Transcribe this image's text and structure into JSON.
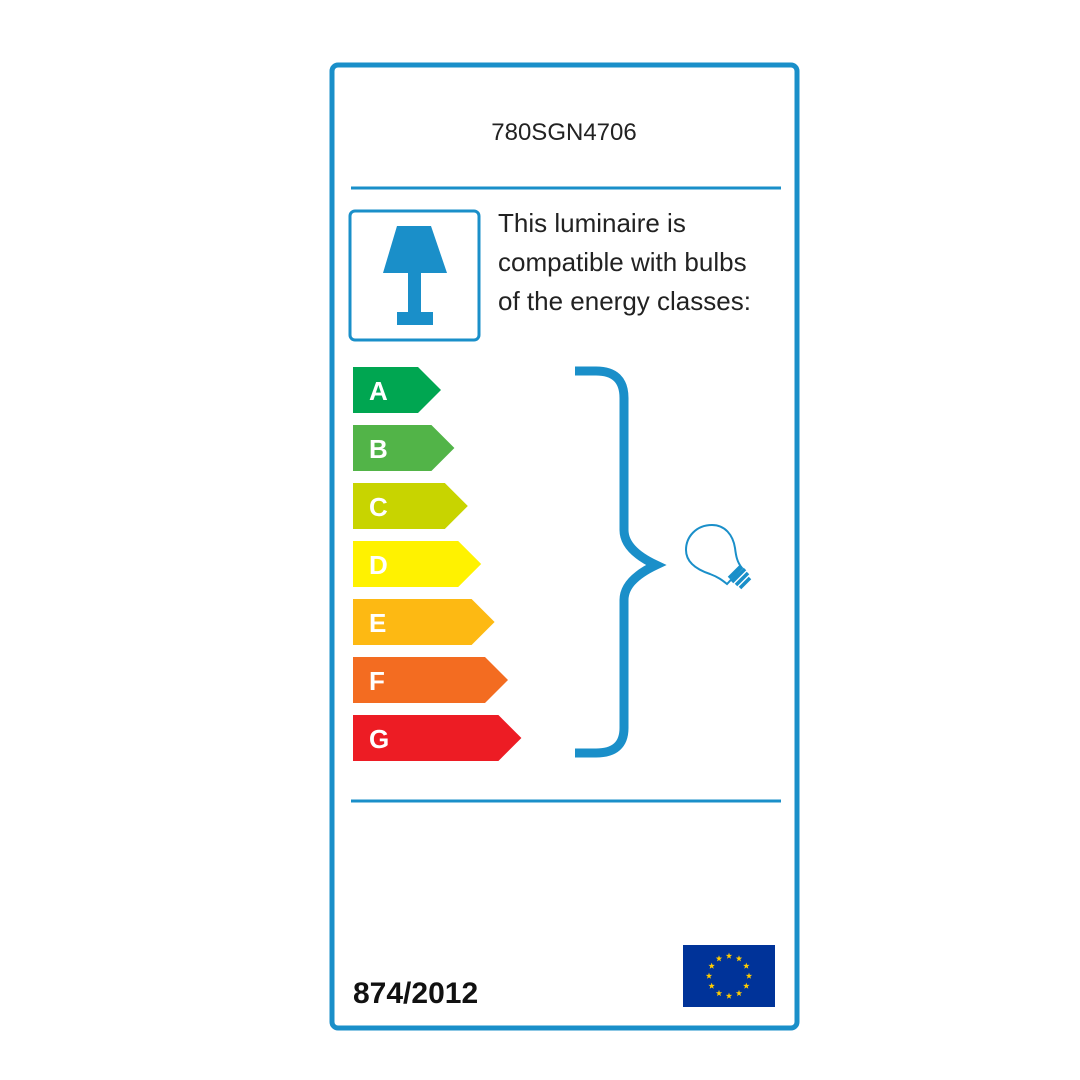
{
  "label": {
    "model": "780SGN4706",
    "description_lines": [
      "This luminaire is",
      "compatible with bulbs",
      "of the energy classes:"
    ],
    "regulation": "874/2012",
    "accent_color": "#1a8fc9",
    "luminaire_icon": "table-lamp-icon",
    "bulb_icon": "light-bulb-icon",
    "flag": "eu-flag",
    "energy_classes": [
      {
        "letter": "A",
        "color": "#00a651"
      },
      {
        "letter": "B",
        "color": "#52b448"
      },
      {
        "letter": "C",
        "color": "#c8d400"
      },
      {
        "letter": "D",
        "color": "#fff200"
      },
      {
        "letter": "E",
        "color": "#fdb913"
      },
      {
        "letter": "F",
        "color": "#f36c21"
      },
      {
        "letter": "G",
        "color": "#ed1c24"
      }
    ]
  }
}
